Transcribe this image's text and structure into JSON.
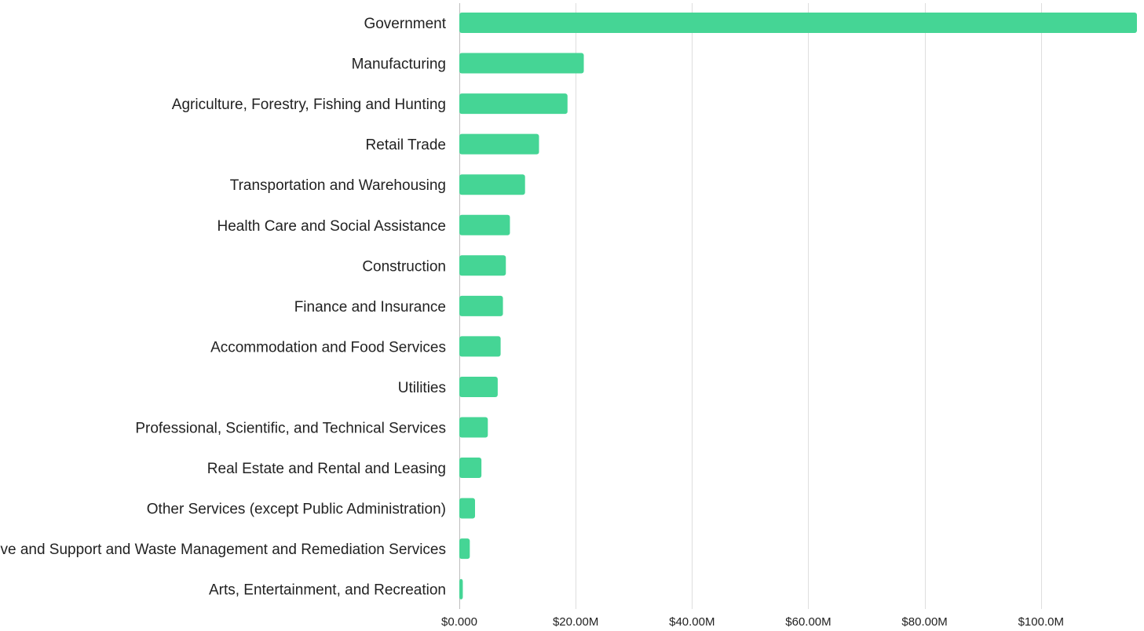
{
  "chart_data": {
    "type": "bar",
    "orientation": "horizontal",
    "title": "",
    "xlabel": "",
    "ylabel": "",
    "categories": [
      "Government",
      "Manufacturing",
      "Agriculture, Forestry, Fishing and Hunting",
      "Retail Trade",
      "Transportation and Warehousing",
      "Health Care and Social Assistance",
      "Construction",
      "Finance and Insurance",
      "Accommodation and Food Services",
      "Utilities",
      "Professional, Scientific, and Technical Services",
      "Real Estate and Rental and Leasing",
      "Other Services (except Public Administration)",
      "Administrative and Support and Waste Management and Remediation Services",
      "Arts, Entertainment, and Recreation"
    ],
    "values": [
      116.5,
      21.4,
      18.6,
      13.7,
      11.3,
      8.7,
      8.0,
      7.5,
      7.1,
      6.6,
      4.9,
      3.8,
      2.7,
      1.8,
      0.6
    ],
    "value_unit": "$M",
    "xlim": [
      0,
      116.5
    ],
    "xticks": [
      0,
      20,
      40,
      60,
      80,
      100
    ],
    "xtick_labels": [
      "$0.000",
      "$20.00M",
      "$40.00M",
      "$60.00M",
      "$80.00M",
      "$100.0M"
    ],
    "bar_color": "#45d595",
    "grid": true,
    "legend": "none"
  }
}
